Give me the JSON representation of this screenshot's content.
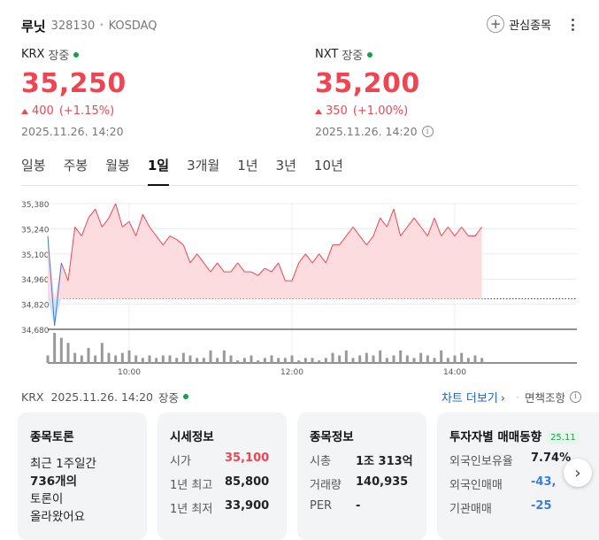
{
  "header": {
    "name": "루닛",
    "code": "328130",
    "market": "KOSDAQ",
    "favorite_label": "관심종목"
  },
  "quotes": [
    {
      "market": "KRX",
      "status": "장중",
      "price": "35,250",
      "change": "400",
      "change_pct": "(+1.15%)",
      "time": "2025.11.26. 14:20"
    },
    {
      "market": "NXT",
      "status": "장중",
      "price": "35,200",
      "change": "350",
      "change_pct": "(+1.00%)",
      "time": "2025.11.26. 14:20"
    }
  ],
  "tabs": [
    "일봉",
    "주봉",
    "월봉",
    "1일",
    "3개월",
    "1년",
    "3년",
    "10년"
  ],
  "active_tab": "1일",
  "chart_data": {
    "type": "area",
    "y_ticks": [
      "35,380",
      "35,240",
      "35,100",
      "34,960",
      "34,820",
      "34,680"
    ],
    "x_ticks": [
      "10:00",
      "12:00",
      "14:00"
    ],
    "ylim": [
      34680,
      35380
    ],
    "prev_close": 34850,
    "x": [
      "09:00",
      "09:05",
      "09:10",
      "09:15",
      "09:20",
      "09:25",
      "09:30",
      "09:35",
      "09:40",
      "09:45",
      "09:50",
      "09:55",
      "10:00",
      "10:05",
      "10:10",
      "10:15",
      "10:20",
      "10:25",
      "10:30",
      "10:35",
      "10:40",
      "10:45",
      "10:50",
      "10:55",
      "11:00",
      "11:05",
      "11:10",
      "11:15",
      "11:20",
      "11:25",
      "11:30",
      "11:35",
      "11:40",
      "11:45",
      "11:50",
      "11:55",
      "12:00",
      "12:05",
      "12:10",
      "12:15",
      "12:20",
      "12:25",
      "12:30",
      "12:35",
      "12:40",
      "12:45",
      "12:50",
      "12:55",
      "13:00",
      "13:05",
      "13:10",
      "13:15",
      "13:20",
      "13:25",
      "13:30",
      "13:35",
      "13:40",
      "13:45",
      "13:50",
      "13:55",
      "14:00",
      "14:05",
      "14:10",
      "14:15",
      "14:20"
    ],
    "values": [
      35200,
      34700,
      35050,
      34950,
      35250,
      35200,
      35300,
      35350,
      35250,
      35300,
      35380,
      35250,
      35280,
      35200,
      35320,
      35250,
      35200,
      35150,
      35200,
      35180,
      35150,
      35050,
      35100,
      35050,
      35000,
      35050,
      35000,
      35000,
      35050,
      35000,
      35000,
      34980,
      35020,
      35000,
      35050,
      34950,
      34950,
      35050,
      35100,
      35050,
      35100,
      35050,
      35150,
      35150,
      35200,
      35250,
      35200,
      35150,
      35200,
      35300,
      35250,
      35350,
      35200,
      35250,
      35300,
      35250,
      35200,
      35300,
      35200,
      35250,
      35200,
      35250,
      35200,
      35200,
      35250
    ],
    "volumes": [
      3,
      12,
      10,
      8,
      4,
      3,
      6,
      3,
      8,
      4,
      3,
      4,
      5,
      3,
      2,
      3,
      2,
      3,
      3,
      2,
      4,
      3,
      2,
      2,
      5,
      2,
      5,
      3,
      1,
      2,
      3,
      1,
      2,
      3,
      2,
      2,
      3,
      1,
      2,
      2,
      1,
      2,
      4,
      3,
      5,
      2,
      3,
      4,
      3,
      5,
      2,
      3,
      5,
      3,
      2,
      4,
      3,
      2,
      5,
      2,
      3,
      4,
      2,
      3,
      2
    ]
  },
  "footer": {
    "market": "KRX",
    "time": "2025.11.26. 14:20",
    "status": "장중",
    "chart_more": "차트 더보기",
    "disclaimer": "면책조항"
  },
  "cards": {
    "discussion": {
      "title": "종목토론",
      "lines": [
        "최근 1주일간",
        "736개의",
        "토론이",
        "올라왔어요"
      ]
    },
    "market_info": {
      "title": "시세정보",
      "rows": [
        {
          "k": "시가",
          "v": "35,100"
        },
        {
          "k": "1년 최고",
          "v": "85,800"
        },
        {
          "k": "1년 최저",
          "v": "33,900"
        }
      ]
    },
    "stock_info": {
      "title": "종목정보",
      "rows": [
        {
          "k": "시총",
          "v": "1조 313억"
        },
        {
          "k": "거래량",
          "v": "140,935"
        },
        {
          "k": "PER",
          "v": "-"
        }
      ]
    },
    "investor": {
      "title": "투자자별 매매동향",
      "badge": "25.11",
      "rows": [
        {
          "k": "외국인보유율",
          "v": "7.74%"
        },
        {
          "k": "외국인매매",
          "v": "-43,"
        },
        {
          "k": "기관매매",
          "v": "-25"
        }
      ]
    }
  },
  "colors": {
    "up": "#f04452",
    "down": "#3b7ddd",
    "accent": "#1a5fd6",
    "live": "#12a34a"
  }
}
